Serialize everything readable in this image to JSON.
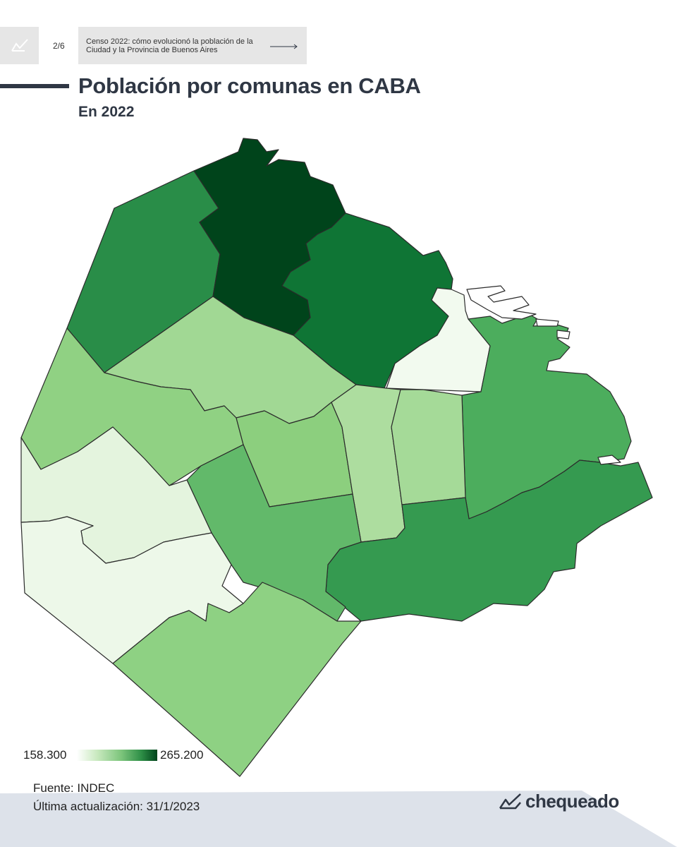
{
  "header": {
    "page_counter": "2/6",
    "series_title": "Censo 2022: cómo evolucionó la población de la Ciudad y la Provincia de Buenos Aires",
    "logo_icon": "chequeado-mark-icon",
    "arrow_icon": "arrow-right-icon"
  },
  "title": "Población por comunas en CABA",
  "subtitle": "En 2022",
  "legend": {
    "min_label": "158.300",
    "max_label": "265.200",
    "min_value": 158300,
    "max_value": 265200,
    "color_low": "#ffffff",
    "color_high": "#00441b"
  },
  "footer": {
    "source": "Fuente: INDEC",
    "updated": "Última actualización: 31/1/2023",
    "brand": "chequeado",
    "brand_icon": "chequeado-check-icon"
  },
  "colors": {
    "text": "#2f3744",
    "band": "#dde2ea",
    "map_stroke": "#2b2b2b"
  }
}
